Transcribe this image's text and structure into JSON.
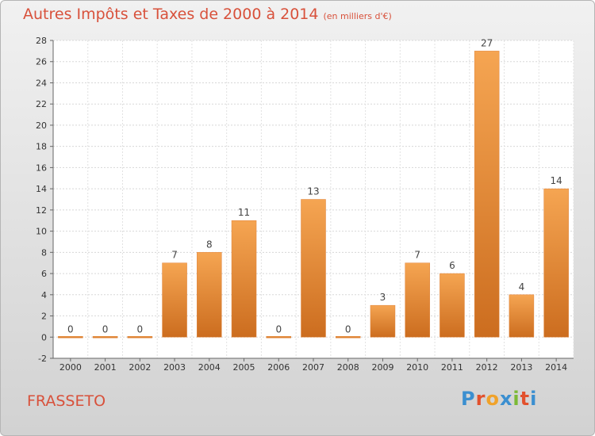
{
  "chart_data": {
    "type": "bar",
    "title": "Autres Impôts et Taxes de 2000 à 2014",
    "unit": "(en milliers d'€)",
    "categories": [
      "2000",
      "2001",
      "2002",
      "2003",
      "2004",
      "2005",
      "2006",
      "2007",
      "2008",
      "2009",
      "2010",
      "2011",
      "2012",
      "2013",
      "2014"
    ],
    "values": [
      0,
      0,
      0,
      7,
      8,
      11,
      0,
      13,
      0,
      3,
      7,
      6,
      27,
      4,
      14
    ],
    "ylim": [
      -2,
      28
    ],
    "yticks": [
      -2,
      0,
      2,
      4,
      6,
      8,
      10,
      12,
      14,
      16,
      18,
      20,
      22,
      24,
      26,
      28
    ],
    "grid": true,
    "bar_color": "#f0923a",
    "bar_color_dark": "#c8691e"
  },
  "commune": "FRASSETO",
  "logo": {
    "text": "Proxiti",
    "letters": [
      {
        "ch": "P",
        "color": "#3b8fd0"
      },
      {
        "ch": "r",
        "color": "#e2512d"
      },
      {
        "ch": "o",
        "color": "#f0a22a"
      },
      {
        "ch": "x",
        "color": "#3b8fd0"
      },
      {
        "ch": "i",
        "color": "#7bb935"
      },
      {
        "ch": "t",
        "color": "#e2512d"
      },
      {
        "ch": "i",
        "color": "#3b8fd0"
      }
    ]
  }
}
